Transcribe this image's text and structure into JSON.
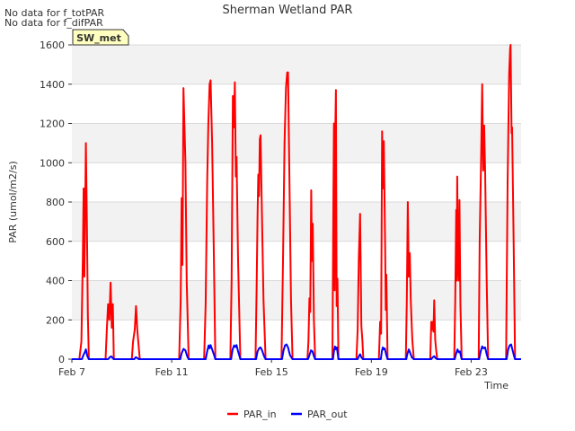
{
  "chart_data": {
    "type": "line",
    "title": "Sherman Wetland PAR",
    "xlabel": "Time",
    "ylabel": "PAR (umol/m2/s)",
    "ylim": [
      0,
      1600
    ],
    "xlim": [
      7,
      25
    ],
    "yticks": [
      0,
      200,
      400,
      600,
      800,
      1000,
      1200,
      1400,
      1600
    ],
    "xticks": [
      {
        "value": 7,
        "label": "Feb 7"
      },
      {
        "value": 11,
        "label": "Feb 11"
      },
      {
        "value": 15,
        "label": "Feb 15"
      },
      {
        "value": 19,
        "label": "Feb 19"
      },
      {
        "value": 23,
        "label": "Feb 23"
      }
    ],
    "notes": [
      "No data for f_totPAR",
      "No data for f_difPAR"
    ],
    "badge": "SW_met",
    "legend_position": "bottom-center",
    "series": [
      {
        "name": "PAR_in",
        "color": "#ff0000",
        "points": [
          [
            7.0,
            0
          ],
          [
            7.3,
            0
          ],
          [
            7.38,
            90
          ],
          [
            7.44,
            520
          ],
          [
            7.47,
            870
          ],
          [
            7.5,
            420
          ],
          [
            7.52,
            600
          ],
          [
            7.56,
            1100
          ],
          [
            7.6,
            700
          ],
          [
            7.64,
            220
          ],
          [
            7.68,
            0
          ],
          [
            8.0,
            0
          ],
          [
            8.35,
            0
          ],
          [
            8.4,
            150
          ],
          [
            8.45,
            280
          ],
          [
            8.5,
            200
          ],
          [
            8.55,
            390
          ],
          [
            8.6,
            160
          ],
          [
            8.64,
            280
          ],
          [
            8.68,
            0
          ],
          [
            9.0,
            0
          ],
          [
            9.4,
            0
          ],
          [
            9.45,
            90
          ],
          [
            9.52,
            150
          ],
          [
            9.57,
            270
          ],
          [
            9.62,
            150
          ],
          [
            9.66,
            90
          ],
          [
            9.72,
            0
          ],
          [
            10.0,
            0
          ],
          [
            11.3,
            0
          ],
          [
            11.36,
            300
          ],
          [
            11.4,
            820
          ],
          [
            11.43,
            480
          ],
          [
            11.47,
            1380
          ],
          [
            11.55,
            1000
          ],
          [
            11.6,
            400
          ],
          [
            11.68,
            0
          ],
          [
            12.0,
            0
          ],
          [
            12.3,
            0
          ],
          [
            12.36,
            280
          ],
          [
            12.42,
            900
          ],
          [
            12.47,
            1200
          ],
          [
            12.52,
            1400
          ],
          [
            12.56,
            1420
          ],
          [
            12.62,
            1100
          ],
          [
            12.68,
            600
          ],
          [
            12.75,
            0
          ],
          [
            13.0,
            0
          ],
          [
            13.35,
            0
          ],
          [
            13.4,
            400
          ],
          [
            13.45,
            1340
          ],
          [
            13.49,
            1180
          ],
          [
            13.53,
            1410
          ],
          [
            13.57,
            930
          ],
          [
            13.6,
            1030
          ],
          [
            13.66,
            500
          ],
          [
            13.75,
            0
          ],
          [
            14.0,
            0
          ],
          [
            14.36,
            0
          ],
          [
            14.4,
            350
          ],
          [
            14.44,
            740
          ],
          [
            14.47,
            940
          ],
          [
            14.5,
            830
          ],
          [
            14.53,
            1120
          ],
          [
            14.56,
            1140
          ],
          [
            14.62,
            700
          ],
          [
            14.68,
            300
          ],
          [
            14.76,
            0
          ],
          [
            15.0,
            0
          ],
          [
            15.4,
            0
          ],
          [
            15.46,
            500
          ],
          [
            15.52,
            1100
          ],
          [
            15.58,
            1380
          ],
          [
            15.63,
            1460
          ],
          [
            15.66,
            1460
          ],
          [
            15.72,
            900
          ],
          [
            15.78,
            300
          ],
          [
            15.84,
            0
          ],
          [
            16.0,
            0
          ],
          [
            16.44,
            0
          ],
          [
            16.48,
            90
          ],
          [
            16.52,
            310
          ],
          [
            16.55,
            240
          ],
          [
            16.59,
            860
          ],
          [
            16.62,
            500
          ],
          [
            16.65,
            690
          ],
          [
            16.7,
            200
          ],
          [
            16.75,
            0
          ],
          [
            17.0,
            0
          ],
          [
            17.44,
            0
          ],
          [
            17.48,
            840
          ],
          [
            17.5,
            1200
          ],
          [
            17.53,
            350
          ],
          [
            17.56,
            1200
          ],
          [
            17.58,
            1370
          ],
          [
            17.61,
            270
          ],
          [
            17.64,
            410
          ],
          [
            17.68,
            0
          ],
          [
            18.0,
            0
          ],
          [
            18.4,
            0
          ],
          [
            18.45,
            150
          ],
          [
            18.5,
            520
          ],
          [
            18.55,
            740
          ],
          [
            18.6,
            170
          ],
          [
            18.64,
            100
          ],
          [
            18.68,
            0
          ],
          [
            19.0,
            0
          ],
          [
            19.3,
            0
          ],
          [
            19.35,
            190
          ],
          [
            19.39,
            130
          ],
          [
            19.43,
            1160
          ],
          [
            19.47,
            870
          ],
          [
            19.5,
            1110
          ],
          [
            19.55,
            600
          ],
          [
            19.58,
            250
          ],
          [
            19.6,
            430
          ],
          [
            19.65,
            0
          ],
          [
            20.0,
            0
          ],
          [
            20.38,
            0
          ],
          [
            20.42,
            300
          ],
          [
            20.46,
            800
          ],
          [
            20.5,
            420
          ],
          [
            20.54,
            540
          ],
          [
            20.58,
            300
          ],
          [
            20.64,
            100
          ],
          [
            20.7,
            0
          ],
          [
            21.0,
            0
          ],
          [
            21.36,
            0
          ],
          [
            21.4,
            190
          ],
          [
            21.43,
            150
          ],
          [
            21.46,
            190
          ],
          [
            21.49,
            140
          ],
          [
            21.52,
            300
          ],
          [
            21.56,
            100
          ],
          [
            21.6,
            40
          ],
          [
            21.64,
            0
          ],
          [
            22.0,
            0
          ],
          [
            22.32,
            0
          ],
          [
            22.36,
            300
          ],
          [
            22.4,
            760
          ],
          [
            22.42,
            400
          ],
          [
            22.44,
            930
          ],
          [
            22.47,
            500
          ],
          [
            22.5,
            400
          ],
          [
            22.53,
            810
          ],
          [
            22.57,
            270
          ],
          [
            22.62,
            0
          ],
          [
            23.0,
            0
          ],
          [
            23.3,
            0
          ],
          [
            23.34,
            600
          ],
          [
            23.4,
            1050
          ],
          [
            23.44,
            1400
          ],
          [
            23.48,
            960
          ],
          [
            23.52,
            1190
          ],
          [
            23.56,
            950
          ],
          [
            23.62,
            400
          ],
          [
            23.68,
            0
          ],
          [
            24.0,
            0
          ],
          [
            24.4,
            0
          ],
          [
            24.46,
            900
          ],
          [
            24.52,
            1450
          ],
          [
            24.56,
            1580
          ],
          [
            24.58,
            1600
          ],
          [
            24.62,
            1150
          ],
          [
            24.64,
            1180
          ],
          [
            24.7,
            600
          ],
          [
            24.76,
            0
          ],
          [
            25.0,
            0
          ]
        ]
      },
      {
        "name": "PAR_out",
        "color": "#0000ff",
        "points": [
          [
            7.0,
            0
          ],
          [
            7.4,
            0
          ],
          [
            7.46,
            20
          ],
          [
            7.52,
            35
          ],
          [
            7.56,
            50
          ],
          [
            7.62,
            15
          ],
          [
            7.68,
            0
          ],
          [
            8.0,
            0
          ],
          [
            8.45,
            0
          ],
          [
            8.52,
            10
          ],
          [
            8.58,
            14
          ],
          [
            8.64,
            5
          ],
          [
            8.68,
            0
          ],
          [
            9.0,
            0
          ],
          [
            9.5,
            0
          ],
          [
            9.56,
            10
          ],
          [
            9.62,
            6
          ],
          [
            9.68,
            0
          ],
          [
            11.0,
            0
          ],
          [
            11.34,
            0
          ],
          [
            11.4,
            30
          ],
          [
            11.47,
            52
          ],
          [
            11.55,
            45
          ],
          [
            11.62,
            15
          ],
          [
            11.68,
            0
          ],
          [
            12.0,
            0
          ],
          [
            12.36,
            0
          ],
          [
            12.42,
            40
          ],
          [
            12.48,
            70
          ],
          [
            12.52,
            55
          ],
          [
            12.56,
            72
          ],
          [
            12.62,
            50
          ],
          [
            12.7,
            20
          ],
          [
            12.75,
            0
          ],
          [
            13.0,
            0
          ],
          [
            13.38,
            0
          ],
          [
            13.44,
            50
          ],
          [
            13.5,
            70
          ],
          [
            13.55,
            62
          ],
          [
            13.6,
            72
          ],
          [
            13.66,
            40
          ],
          [
            13.75,
            0
          ],
          [
            14.0,
            0
          ],
          [
            14.38,
            0
          ],
          [
            14.44,
            40
          ],
          [
            14.5,
            55
          ],
          [
            14.56,
            60
          ],
          [
            14.62,
            45
          ],
          [
            14.7,
            15
          ],
          [
            14.76,
            0
          ],
          [
            15.0,
            0
          ],
          [
            15.42,
            0
          ],
          [
            15.48,
            45
          ],
          [
            15.54,
            70
          ],
          [
            15.6,
            75
          ],
          [
            15.66,
            60
          ],
          [
            15.74,
            20
          ],
          [
            15.84,
            0
          ],
          [
            16.0,
            0
          ],
          [
            16.46,
            0
          ],
          [
            16.52,
            20
          ],
          [
            16.58,
            45
          ],
          [
            16.64,
            40
          ],
          [
            16.7,
            15
          ],
          [
            16.75,
            0
          ],
          [
            17.0,
            0
          ],
          [
            17.46,
            0
          ],
          [
            17.5,
            40
          ],
          [
            17.54,
            65
          ],
          [
            17.58,
            50
          ],
          [
            17.62,
            60
          ],
          [
            17.66,
            20
          ],
          [
            17.68,
            0
          ],
          [
            18.0,
            0
          ],
          [
            18.45,
            0
          ],
          [
            18.5,
            15
          ],
          [
            18.55,
            25
          ],
          [
            18.6,
            10
          ],
          [
            18.66,
            0
          ],
          [
            19.0,
            0
          ],
          [
            19.38,
            0
          ],
          [
            19.42,
            40
          ],
          [
            19.46,
            60
          ],
          [
            19.5,
            50
          ],
          [
            19.54,
            55
          ],
          [
            19.6,
            20
          ],
          [
            19.65,
            0
          ],
          [
            20.0,
            0
          ],
          [
            20.4,
            0
          ],
          [
            20.45,
            30
          ],
          [
            20.5,
            50
          ],
          [
            20.56,
            30
          ],
          [
            20.62,
            10
          ],
          [
            20.7,
            0
          ],
          [
            21.0,
            0
          ],
          [
            21.4,
            0
          ],
          [
            21.46,
            10
          ],
          [
            21.52,
            15
          ],
          [
            21.58,
            5
          ],
          [
            21.64,
            0
          ],
          [
            22.0,
            0
          ],
          [
            22.34,
            0
          ],
          [
            22.4,
            30
          ],
          [
            22.45,
            50
          ],
          [
            22.5,
            35
          ],
          [
            22.55,
            40
          ],
          [
            22.6,
            10
          ],
          [
            22.62,
            0
          ],
          [
            23.0,
            0
          ],
          [
            23.32,
            0
          ],
          [
            23.38,
            40
          ],
          [
            23.44,
            65
          ],
          [
            23.5,
            55
          ],
          [
            23.56,
            60
          ],
          [
            23.62,
            25
          ],
          [
            23.68,
            0
          ],
          [
            24.0,
            0
          ],
          [
            24.42,
            0
          ],
          [
            24.48,
            50
          ],
          [
            24.54,
            70
          ],
          [
            24.6,
            75
          ],
          [
            24.66,
            45
          ],
          [
            24.72,
            15
          ],
          [
            24.76,
            0
          ],
          [
            25.0,
            0
          ]
        ]
      }
    ]
  }
}
